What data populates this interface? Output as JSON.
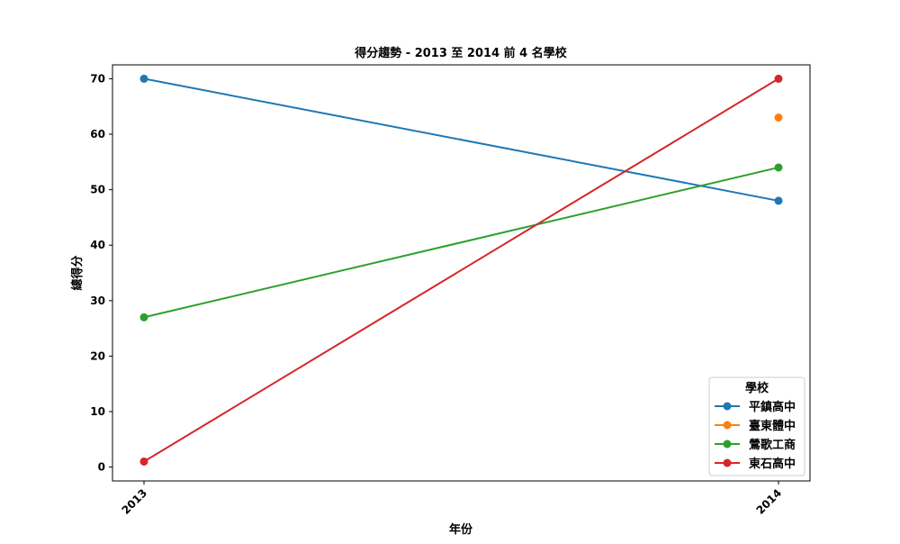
{
  "chart_data": {
    "type": "line",
    "title": "得分趨勢 - 2013 至 2014 前 4 名學校",
    "xlabel": "年份",
    "ylabel": "總得分",
    "x": [
      "2013",
      "2014"
    ],
    "ylim": [
      -2.5,
      72.5
    ],
    "yticks": [
      0,
      10,
      20,
      30,
      40,
      50,
      60,
      70
    ],
    "legend": {
      "title": "學校",
      "placement": "lower-right"
    },
    "grid": false,
    "series": [
      {
        "name": "平鎮高中",
        "color": "#1f77b4",
        "values": [
          70,
          48
        ]
      },
      {
        "name": "臺東體中",
        "color": "#ff7f0e",
        "values": [
          null,
          63
        ]
      },
      {
        "name": "鶯歌工商",
        "color": "#2ca02c",
        "values": [
          27,
          54
        ]
      },
      {
        "name": "東石高中",
        "color": "#d62728",
        "values": [
          1,
          70
        ]
      }
    ]
  }
}
